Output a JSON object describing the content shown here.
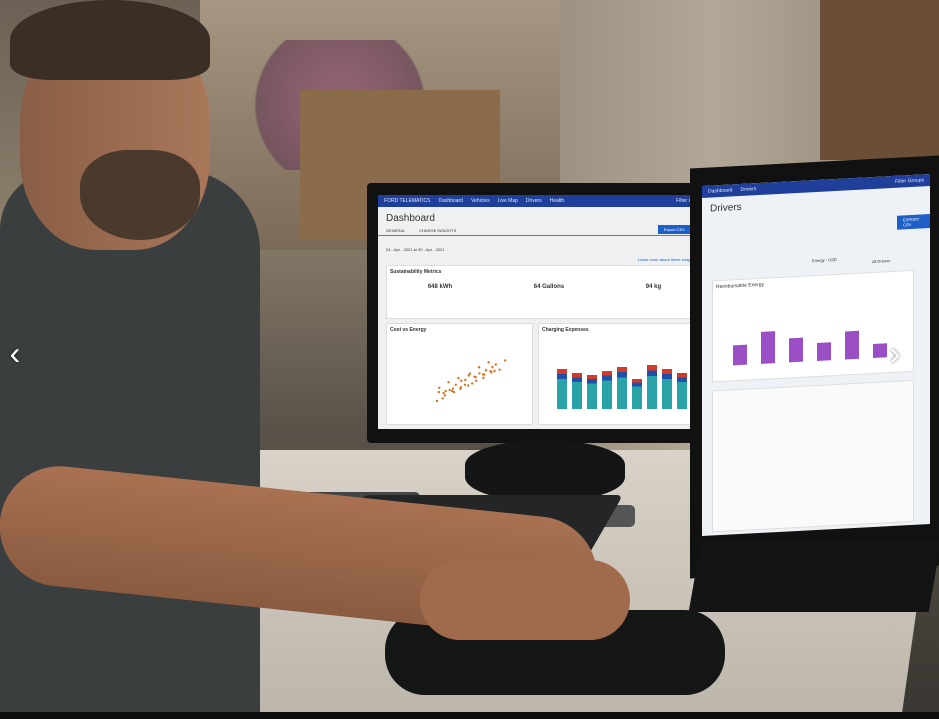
{
  "carousel": {
    "prev_icon": "chevron-left-icon",
    "next_icon": "chevron-right-icon",
    "prev_glyph": "‹",
    "next_glyph": "›"
  },
  "left_monitor": {
    "brand": "FORD TELEMATICS",
    "nav": [
      "Dashboard",
      "Vehicles",
      "Live Map",
      "Drivers",
      "Health"
    ],
    "filter": "Filter Groups",
    "title": "Dashboard",
    "tabs": [
      "GENERAL",
      "CHARGE INSIGHTS"
    ],
    "export": "Export CSV",
    "dates": "24 - Apr - 2021  to  30 - Apr - 2021",
    "learn_more": "Learn more about these insights",
    "sustainability_title": "Sustainability Metrics",
    "metrics": [
      {
        "value": "648 kWh",
        "label": "of energy gained while charging"
      },
      {
        "value": "64 Gallons",
        "label": "of gasoline saved"
      },
      {
        "value": "94 kg",
        "label": "of CO2 saved"
      }
    ],
    "chart_left_title": "Cost vs Energy",
    "chart_right_title": "Charging Expenses"
  },
  "right_monitor": {
    "nav": [
      "Dashboard",
      "Vehicles",
      "Live Map",
      "Drivers",
      "Health"
    ],
    "filter": "Filter Groups",
    "title": "Drivers",
    "export": "EXPORT CSV",
    "energy_select": "Energy - USD",
    "drivers_select": "All Drivers",
    "section_title": "Reimbursable Energy"
  },
  "colors": {
    "nav": "#1f3f9a",
    "accent": "#1f5fc8",
    "teal": "#2aa3a8",
    "purple": "#9a4fc4"
  }
}
